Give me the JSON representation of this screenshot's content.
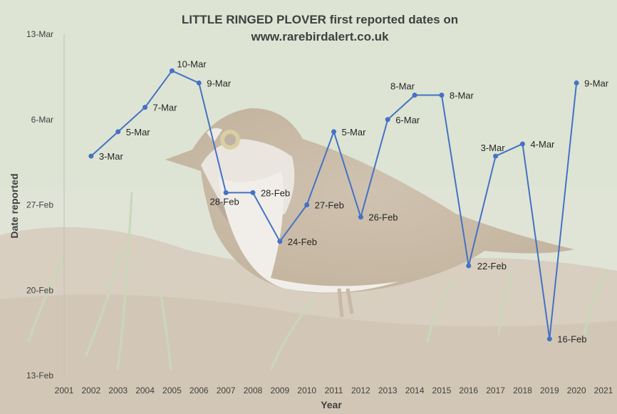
{
  "chart_data": {
    "type": "line",
    "title_line1": "LITTLE RINGED PLOVER first reported dates on",
    "title_line2": "www.rarebirdalert.co.uk",
    "xlabel": "Year",
    "ylabel": "Date reported",
    "x_ticks": [
      "2001",
      "2002",
      "2003",
      "2004",
      "2005",
      "2006",
      "2007",
      "2008",
      "2009",
      "2010",
      "2011",
      "2012",
      "2013",
      "2014",
      "2015",
      "2016",
      "2017",
      "2018",
      "2019",
      "2020",
      "2021"
    ],
    "y_ticks": [
      "13-Feb",
      "20-Feb",
      "27-Feb",
      "6-Mar",
      "13-Mar"
    ],
    "xlim": [
      2001,
      2021
    ],
    "ylim": [
      "13-Feb",
      "13-Mar"
    ],
    "points": [
      {
        "x": 2002,
        "date": "3-Mar",
        "label": "3-Mar"
      },
      {
        "x": 2003,
        "date": "5-Mar",
        "label": "5-Mar"
      },
      {
        "x": 2004,
        "date": "7-Mar",
        "label": "7-Mar"
      },
      {
        "x": 2005,
        "date": "10-Mar",
        "label": "10-Mar"
      },
      {
        "x": 2006,
        "date": "9-Mar",
        "label": "9-Mar"
      },
      {
        "x": 2007,
        "date": "28-Feb",
        "label": "28-Feb"
      },
      {
        "x": 2008,
        "date": "28-Feb",
        "label": "28-Feb"
      },
      {
        "x": 2009,
        "date": "24-Feb",
        "label": "24-Feb"
      },
      {
        "x": 2010,
        "date": "27-Feb",
        "label": "27-Feb"
      },
      {
        "x": 2011,
        "date": "5-Mar",
        "label": "5-Mar"
      },
      {
        "x": 2012,
        "date": "26-Feb",
        "label": "26-Feb"
      },
      {
        "x": 2013,
        "date": "6-Mar",
        "label": "6-Mar"
      },
      {
        "x": 2014,
        "date": "8-Mar",
        "label": "8-Mar"
      },
      {
        "x": 2015,
        "date": "8-Mar",
        "label": "8-Mar"
      },
      {
        "x": 2016,
        "date": "22-Feb",
        "label": "22-Feb"
      },
      {
        "x": 2017,
        "date": "3-Mar",
        "label": "3-Mar"
      },
      {
        "x": 2018,
        "date": "4-Mar",
        "label": "4-Mar"
      },
      {
        "x": 2019,
        "date": "16-Feb",
        "label": "16-Feb"
      },
      {
        "x": 2020,
        "date": "9-Mar",
        "label": "9-Mar"
      }
    ],
    "line_color": "#4472C4",
    "grid": false,
    "background": "photo of a little ringed plover"
  }
}
